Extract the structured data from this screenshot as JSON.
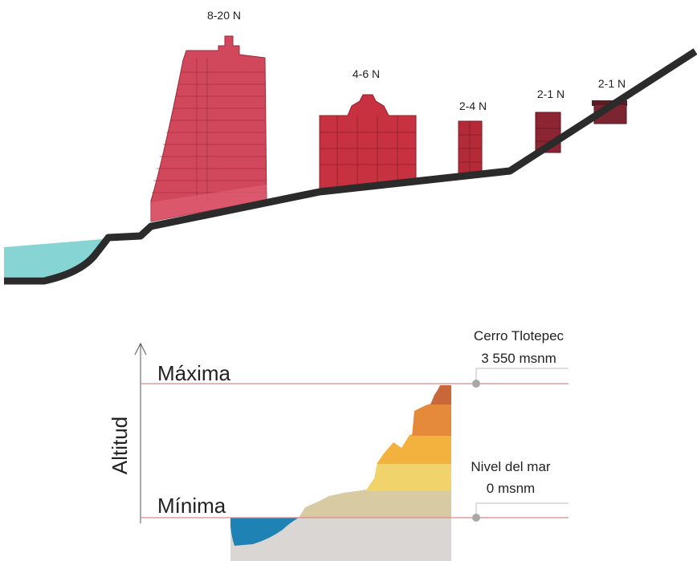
{
  "profile": {
    "buildings": [
      {
        "label": "8-20 N",
        "color": "#d1485c"
      },
      {
        "label": "4-6 N",
        "color": "#c8313f"
      },
      {
        "label": "2-4 N",
        "color": "#b42a38"
      },
      {
        "label": "2-1 N",
        "color": "#8c2432"
      },
      {
        "label": "2-1 N",
        "color": "#7a2530"
      }
    ],
    "ground_color": "#2b2b2b",
    "water_color": "#86d4d4"
  },
  "altitude": {
    "axis_label": "Altitud",
    "max_label": "Máxima",
    "min_label": "Mínima",
    "max_annotation": {
      "title": "Cerro Tlotepec",
      "value": "3 550 msnm"
    },
    "min_annotation": {
      "title": "Nivel del mar",
      "value": "0 msnm"
    },
    "line_color": "#d88a8a",
    "band_colors": [
      "#d8cba3",
      "#f0d36a",
      "#f3b13d",
      "#e58a3a",
      "#c9673a"
    ],
    "sea_color": "#1f82b4",
    "base_color": "#d9d6d4"
  }
}
